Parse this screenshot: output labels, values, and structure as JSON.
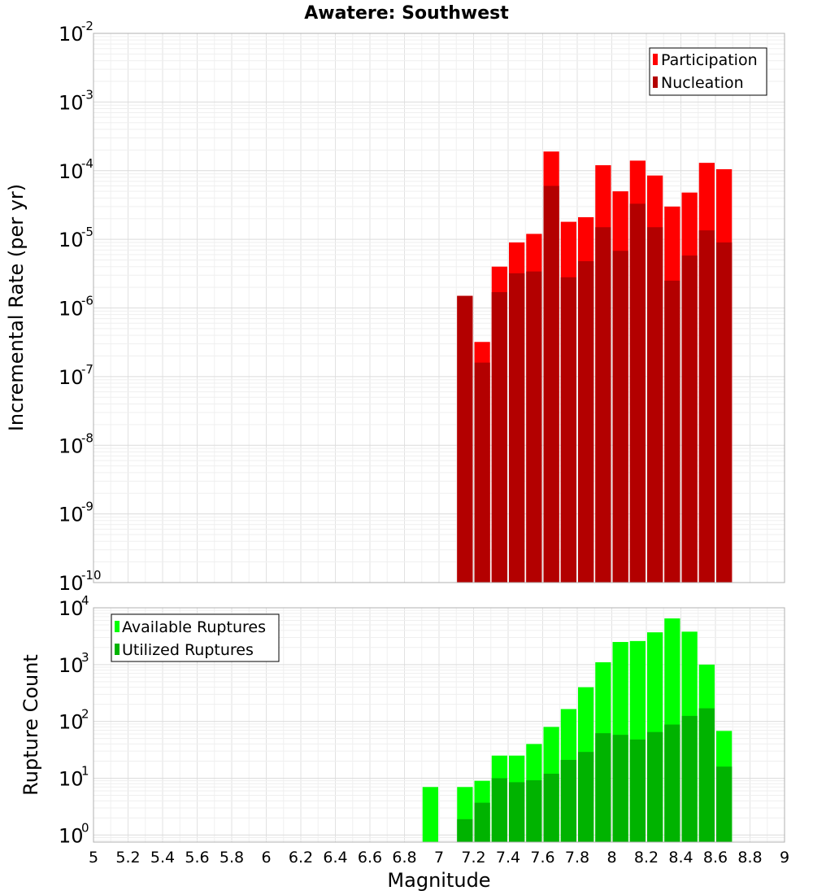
{
  "chart_data": [
    {
      "type": "bar",
      "title": "Awatere: Southwest",
      "ylabel": "Incremental Rate (per yr)",
      "xlabel": "",
      "yscale": "log",
      "ylim": [
        1e-10,
        0.01
      ],
      "xlim": [
        5,
        9
      ],
      "bin_width": 0.1,
      "legend_position": "top-right",
      "y_ticks": [
        {
          "base": "10",
          "exp": "-10"
        },
        {
          "base": "10",
          "exp": "-9"
        },
        {
          "base": "10",
          "exp": "-8"
        },
        {
          "base": "10",
          "exp": "-7"
        },
        {
          "base": "10",
          "exp": "-6"
        },
        {
          "base": "10",
          "exp": "-5"
        },
        {
          "base": "10",
          "exp": "-4"
        },
        {
          "base": "10",
          "exp": "-3"
        },
        {
          "base": "10",
          "exp": "-2"
        }
      ],
      "series": [
        {
          "name": "Participation",
          "color": "#ff0000",
          "x": [
            7.15,
            7.25,
            7.35,
            7.45,
            7.55,
            7.65,
            7.75,
            7.85,
            7.95,
            8.05,
            8.15,
            8.25,
            8.35,
            8.45,
            8.55,
            8.65
          ],
          "values": [
            1.5e-06,
            3.2e-07,
            4e-06,
            9e-06,
            1.2e-05,
            0.00019,
            1.8e-05,
            2.1e-05,
            0.00012,
            5e-05,
            0.00014,
            8.5e-05,
            3e-05,
            4.8e-05,
            0.00013,
            0.000105
          ]
        },
        {
          "name": "Nucleation",
          "color": "#b30000",
          "x": [
            7.15,
            7.25,
            7.35,
            7.45,
            7.55,
            7.65,
            7.75,
            7.85,
            7.95,
            8.05,
            8.15,
            8.25,
            8.35,
            8.45,
            8.55,
            8.65
          ],
          "values": [
            1.5e-06,
            1.6e-07,
            1.7e-06,
            3.2e-06,
            3.4e-06,
            6e-05,
            2.8e-06,
            4.8e-06,
            1.5e-05,
            6.8e-06,
            3.3e-05,
            1.5e-05,
            2.5e-06,
            5.8e-06,
            1.35e-05,
            9e-06
          ]
        }
      ]
    },
    {
      "type": "bar",
      "title": "",
      "ylabel": "Rupture Count",
      "xlabel": "Magnitude",
      "yscale": "log",
      "ylim": [
        0.75,
        10000
      ],
      "xlim": [
        5,
        9
      ],
      "bin_width": 0.1,
      "legend_position": "top-left",
      "x_ticks": [
        "5",
        "5.2",
        "5.4",
        "5.6",
        "5.8",
        "6",
        "6.2",
        "6.4",
        "6.6",
        "6.8",
        "7",
        "7.2",
        "7.4",
        "7.6",
        "7.8",
        "8",
        "8.2",
        "8.4",
        "8.6",
        "8.8",
        "9"
      ],
      "y_ticks": [
        {
          "base": "10",
          "exp": "0"
        },
        {
          "base": "10",
          "exp": "1"
        },
        {
          "base": "10",
          "exp": "2"
        },
        {
          "base": "10",
          "exp": "3"
        },
        {
          "base": "10",
          "exp": "4"
        }
      ],
      "series": [
        {
          "name": "Available Ruptures",
          "color": "#00ff00",
          "x": [
            6.95,
            7.15,
            7.25,
            7.35,
            7.45,
            7.55,
            7.65,
            7.75,
            7.85,
            7.95,
            8.05,
            8.15,
            8.25,
            8.35,
            8.45,
            8.55,
            8.65
          ],
          "values": [
            7,
            7,
            9,
            25,
            25,
            40,
            80,
            165,
            400,
            1100,
            2500,
            2600,
            3700,
            6500,
            3800,
            1000,
            68
          ]
        },
        {
          "name": "Utilized Ruptures",
          "color": "#00b300",
          "x": [
            7.15,
            7.25,
            7.35,
            7.45,
            7.55,
            7.65,
            7.75,
            7.85,
            7.95,
            8.05,
            8.15,
            8.25,
            8.35,
            8.45,
            8.55,
            8.65
          ],
          "values": [
            1.9,
            3.7,
            10,
            8.5,
            9.2,
            12,
            21,
            29,
            62,
            58,
            48,
            65,
            88,
            125,
            170,
            16
          ]
        }
      ]
    }
  ]
}
